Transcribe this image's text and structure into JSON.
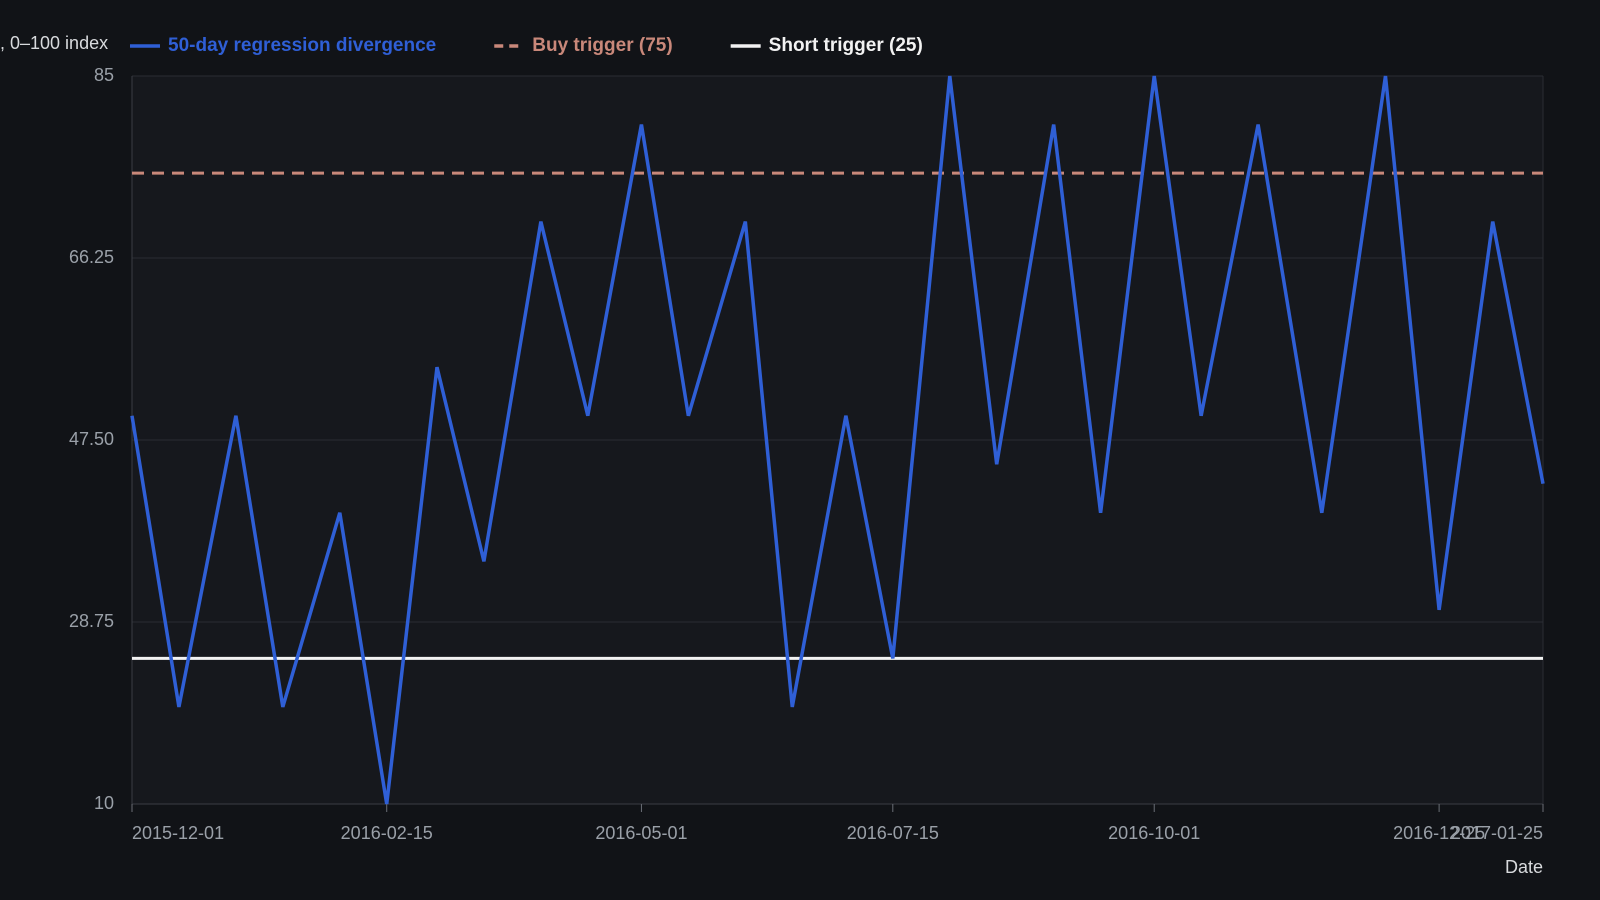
{
  "chart_data": {
    "type": "line",
    "y_label": ", 0–100 index",
    "x_label": "Date",
    "x": [
      "2015-12-01",
      "2015-12-15",
      "2016-01-01",
      "2016-01-15",
      "2016-02-01",
      "2016-02-15",
      "2016-03-01",
      "2016-03-15",
      "2016-04-01",
      "2016-04-15",
      "2016-05-01",
      "2016-05-15",
      "2016-06-01",
      "2016-06-15",
      "2016-07-01",
      "2016-07-15",
      "2016-08-01",
      "2016-08-15",
      "2016-09-01",
      "2016-09-15",
      "2016-10-01",
      "2016-10-15",
      "2016-11-01",
      "2016-11-20",
      "2016-12-09",
      "2016-12-25",
      "2017-01-10",
      "2017-01-25"
    ],
    "series": [
      {
        "name": "50-day regression divergence",
        "color": "#2f5fd6",
        "values": [
          50,
          20,
          50,
          20,
          40,
          10,
          55,
          35,
          70,
          50,
          80,
          50,
          70,
          20,
          50,
          25,
          85,
          45,
          80,
          40,
          85,
          50,
          80,
          40,
          85,
          30,
          70,
          43
        ]
      }
    ],
    "reference_lines": [
      {
        "name": "Buy trigger (75)",
        "color": "#c9887a",
        "value": 75,
        "dashed": true
      },
      {
        "name": "Short trigger (25)",
        "color": "#f2f2f2",
        "value": 25,
        "dashed": false
      }
    ],
    "xlim": [
      "2015-12-01",
      "2017-01-25"
    ],
    "xticks": [
      "2015-12-01",
      "2016-02-15",
      "2016-05-01",
      "2016-07-15",
      "2016-10-01",
      "2016-12-25",
      "2017-01-25"
    ],
    "ylim": [
      10,
      85
    ],
    "yticks": [
      10,
      28.75,
      {
        "value": 47.5,
        "label": "47.50"
      },
      66.25,
      85
    ],
    "grid": true
  }
}
